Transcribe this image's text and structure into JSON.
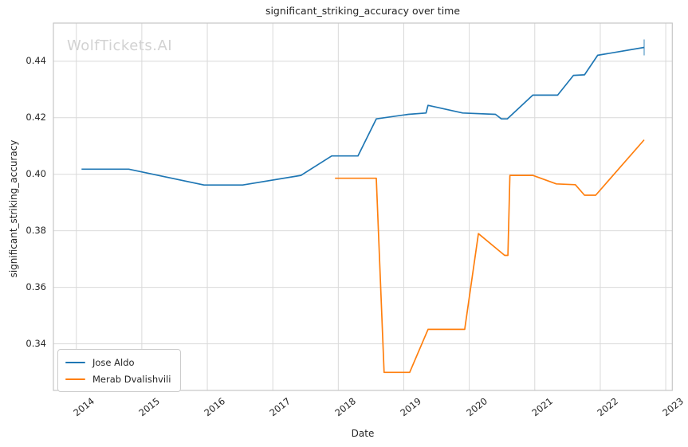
{
  "figure": {
    "watermark": "WolfTickets.AI"
  },
  "chart_data": {
    "type": "line",
    "title": "significant_striking_accuracy over time",
    "xlabel": "Date",
    "ylabel": "significant_striking_accuracy",
    "x_unit": "decimal_year",
    "xlim": [
      2013.65,
      2023.1
    ],
    "ylim": [
      0.3235,
      0.4535
    ],
    "xticks": [
      2014,
      2015,
      2016,
      2017,
      2018,
      2019,
      2020,
      2021,
      2022,
      2023
    ],
    "yticks": [
      0.34,
      0.36,
      0.38,
      0.4,
      0.42,
      0.44
    ],
    "grid": true,
    "legend_position": "lower left",
    "colors": {
      "grid": "#d9d9d9",
      "spine": "#c6c6c6",
      "text": "#262626",
      "watermark": "#d2d2d2",
      "series_blue": "#1f77b4",
      "series_orange": "#ff7f0e"
    },
    "series": [
      {
        "name": "Jose Aldo",
        "color": "#1f77b4",
        "end_marker": "vertical-tick",
        "points": [
          [
            2014.08,
            0.4018
          ],
          [
            2014.8,
            0.4018
          ],
          [
            2015.95,
            0.3962
          ],
          [
            2016.54,
            0.3962
          ],
          [
            2017.43,
            0.3996
          ],
          [
            2017.9,
            0.4065
          ],
          [
            2018.3,
            0.4065
          ],
          [
            2018.58,
            0.4196
          ],
          [
            2019.07,
            0.4212
          ],
          [
            2019.34,
            0.4217
          ],
          [
            2019.37,
            0.4244
          ],
          [
            2019.9,
            0.4217
          ],
          [
            2020.4,
            0.4212
          ],
          [
            2020.49,
            0.4196
          ],
          [
            2020.58,
            0.4196
          ],
          [
            2020.97,
            0.428
          ],
          [
            2021.35,
            0.428
          ],
          [
            2021.59,
            0.435
          ],
          [
            2021.76,
            0.4352
          ],
          [
            2021.96,
            0.4421
          ],
          [
            2022.67,
            0.4449
          ]
        ]
      },
      {
        "name": "Merab Dvalishvili",
        "color": "#ff7f0e",
        "end_marker": "none",
        "points": [
          [
            2017.95,
            0.3986
          ],
          [
            2018.58,
            0.3986
          ],
          [
            2018.7,
            0.3299
          ],
          [
            2019.09,
            0.3299
          ],
          [
            2019.37,
            0.3451
          ],
          [
            2019.93,
            0.3451
          ],
          [
            2020.14,
            0.379
          ],
          [
            2020.54,
            0.3713
          ],
          [
            2020.59,
            0.3713
          ],
          [
            2020.62,
            0.3996
          ],
          [
            2020.97,
            0.3996
          ],
          [
            2021.33,
            0.3966
          ],
          [
            2021.62,
            0.3963
          ],
          [
            2021.76,
            0.3926
          ],
          [
            2021.93,
            0.3926
          ],
          [
            2022.67,
            0.4122
          ]
        ]
      }
    ]
  }
}
